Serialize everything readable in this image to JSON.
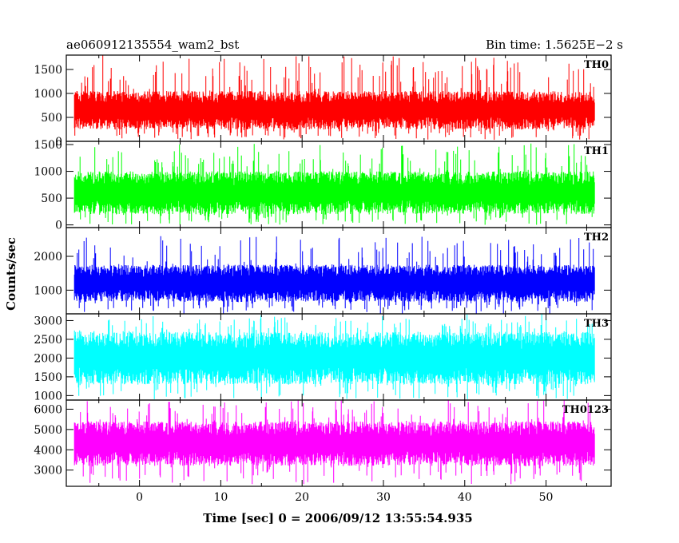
{
  "chart_data": {
    "type": "line",
    "title": "ae060912135554_wam2_bst",
    "subtitle": "Bin time: 1.5625E−2 s",
    "xlabel": "Time [sec] 0 = 2006/09/12 13:55:54.935",
    "ylabel": "Counts/sec",
    "xlim": [
      -9,
      58
    ],
    "xticks": [
      0,
      10,
      20,
      30,
      40,
      50
    ],
    "x_start": -8.0,
    "x_end": 56.0,
    "grid": false,
    "panels": [
      {
        "name": "TH0",
        "color": "#ff0000",
        "ylim": [
          0,
          1800
        ],
        "yticks": [
          0,
          500,
          1000,
          1500
        ],
        "typical_low": 250,
        "typical_high": 1050,
        "min": 30,
        "max": 1800
      },
      {
        "name": "TH1",
        "color": "#00ff00",
        "ylim": [
          -50,
          1560
        ],
        "yticks": [
          0,
          500,
          1000,
          1500
        ],
        "typical_low": 200,
        "typical_high": 1000,
        "min": 0,
        "max": 1520
      },
      {
        "name": "TH2",
        "color": "#0000ff",
        "ylim": [
          300,
          2850
        ],
        "yticks": [
          1000,
          2000
        ],
        "typical_low": 650,
        "typical_high": 1750,
        "min": 300,
        "max": 2600
      },
      {
        "name": "TH3",
        "color": "#00ffff",
        "ylim": [
          880,
          3180
        ],
        "yticks": [
          1000,
          1500,
          2000,
          2500,
          3000
        ],
        "typical_low": 1300,
        "typical_high": 2700,
        "min": 900,
        "max": 3180
      },
      {
        "name": "TH0123",
        "color": "#ff00ff",
        "ylim": [
          2200,
          6450
        ],
        "yticks": [
          3000,
          4000,
          5000,
          6000
        ],
        "typical_low": 3200,
        "typical_high": 5400,
        "min": 2300,
        "max": 6450
      }
    ]
  }
}
